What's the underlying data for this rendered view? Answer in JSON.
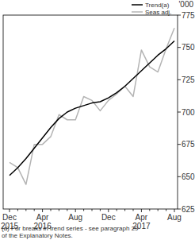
{
  "chart_data": {
    "type": "line",
    "y_label": "'000",
    "categories": [
      "Dec 2015",
      null,
      null,
      null,
      "Apr 2016",
      null,
      null,
      null,
      "Aug",
      null,
      null,
      null,
      "Dec",
      null,
      null,
      null,
      "Apr 2017",
      null,
      null,
      null,
      "Aug"
    ],
    "series": [
      {
        "name": "Trend(a)",
        "color": "#000000",
        "values": [
          651,
          657,
          664,
          672,
          680,
          688,
          695,
          700,
          703,
          705,
          707,
          708,
          711,
          715,
          720,
          726,
          732,
          738,
          744,
          749,
          755
        ]
      },
      {
        "name": "Seas adj.",
        "color": "#b4b4b4",
        "values": [
          661,
          657,
          644,
          675,
          675,
          681,
          698,
          694,
          694,
          712,
          709,
          701,
          709,
          714,
          720,
          712,
          748,
          735,
          731,
          749,
          765
        ]
      }
    ],
    "ylim": [
      625,
      775
    ],
    "yticks": [
      625,
      650,
      675,
      700,
      725,
      750,
      775
    ],
    "annotations": [
      "(a) For breaks in trend series - see paragraph 29 of the Explanatory Notes."
    ],
    "legend": "top-right"
  }
}
